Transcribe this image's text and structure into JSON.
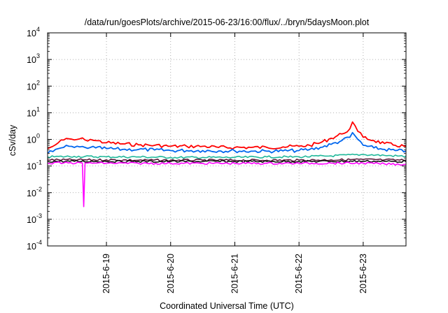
{
  "chart_data": {
    "type": "line",
    "title": "/data/run/goesPlots/archive/2015-06-23/16:00/flux/../bryn/5daysMoon.plot",
    "xlabel": "Coordinated Universal Time (UTC)",
    "ylabel": "cSv/day",
    "yscale": "log",
    "ylim": [
      0.0001,
      10000
    ],
    "xlim": [
      "2015-06-18 02:00",
      "2015-06-23 16:00"
    ],
    "y_ticks": [
      {
        "base": "10",
        "exp": "-4",
        "value": 0.0001
      },
      {
        "base": "10",
        "exp": "-3",
        "value": 0.001
      },
      {
        "base": "10",
        "exp": "-2",
        "value": 0.01
      },
      {
        "base": "10",
        "exp": "-1",
        "value": 0.1
      },
      {
        "base": "10",
        "exp": "0",
        "value": 1
      },
      {
        "base": "10",
        "exp": "1",
        "value": 10
      },
      {
        "base": "10",
        "exp": "2",
        "value": 100
      },
      {
        "base": "10",
        "exp": "3",
        "value": 1000
      },
      {
        "base": "10",
        "exp": "4",
        "value": 10000
      }
    ],
    "x_ticks": [
      "2015-6-19",
      "2015-6-20",
      "2015-6-21",
      "2015-6-22",
      "2015-6-23"
    ],
    "grid": true,
    "series": [
      {
        "color": "#ff0000",
        "x": [
          "2015-06-18 02:00",
          "2015-06-18 04:00",
          "2015-06-18 06:00",
          "2015-06-18 08:00",
          "2015-06-18 10:00",
          "2015-06-18 12:00",
          "2015-06-18 14:00",
          "2015-06-18 16:00",
          "2015-06-18 18:00",
          "2015-06-18 20:00",
          "2015-06-19 00:00",
          "2015-06-19 06:00",
          "2015-06-19 12:00",
          "2015-06-19 18:00",
          "2015-06-20 00:00",
          "2015-06-20 06:00",
          "2015-06-20 12:00",
          "2015-06-20 18:00",
          "2015-06-21 00:00",
          "2015-06-21 06:00",
          "2015-06-21 12:00",
          "2015-06-21 18:00",
          "2015-06-22 00:00",
          "2015-06-22 04:00",
          "2015-06-22 08:00",
          "2015-06-22 12:00",
          "2015-06-22 16:00",
          "2015-06-22 19:00",
          "2015-06-22 20:00",
          "2015-06-22 22:00",
          "2015-06-23 00:00",
          "2015-06-23 04:00",
          "2015-06-23 08:00",
          "2015-06-23 12:00",
          "2015-06-23 16:00"
        ],
        "y": [
          0.45,
          0.55,
          0.75,
          0.95,
          1.05,
          0.95,
          1.05,
          0.95,
          1.0,
          0.9,
          0.75,
          0.68,
          0.62,
          0.6,
          0.55,
          0.55,
          0.55,
          0.5,
          0.5,
          0.5,
          0.5,
          0.52,
          0.55,
          0.6,
          0.75,
          1.1,
          1.6,
          2.5,
          4.5,
          2.0,
          1.2,
          0.9,
          0.7,
          0.6,
          0.55
        ]
      },
      {
        "color": "#0066ee",
        "x": [
          "2015-06-18 02:00",
          "2015-06-18 04:00",
          "2015-06-18 06:00",
          "2015-06-18 08:00",
          "2015-06-18 10:00",
          "2015-06-18 12:00",
          "2015-06-18 14:00",
          "2015-06-18 16:00",
          "2015-06-18 18:00",
          "2015-06-18 20:00",
          "2015-06-19 00:00",
          "2015-06-19 06:00",
          "2015-06-19 12:00",
          "2015-06-19 18:00",
          "2015-06-20 00:00",
          "2015-06-20 06:00",
          "2015-06-20 12:00",
          "2015-06-20 18:00",
          "2015-06-21 00:00",
          "2015-06-21 06:00",
          "2015-06-21 12:00",
          "2015-06-21 18:00",
          "2015-06-22 00:00",
          "2015-06-22 04:00",
          "2015-06-22 08:00",
          "2015-06-22 12:00",
          "2015-06-22 16:00",
          "2015-06-22 19:00",
          "2015-06-22 20:00",
          "2015-06-22 22:00",
          "2015-06-23 00:00",
          "2015-06-23 04:00",
          "2015-06-23 08:00",
          "2015-06-23 12:00",
          "2015-06-23 16:00"
        ],
        "y": [
          0.3,
          0.35,
          0.45,
          0.5,
          0.55,
          0.5,
          0.52,
          0.5,
          0.5,
          0.48,
          0.45,
          0.42,
          0.42,
          0.4,
          0.38,
          0.38,
          0.38,
          0.37,
          0.37,
          0.36,
          0.36,
          0.37,
          0.38,
          0.42,
          0.5,
          0.65,
          0.9,
          1.2,
          1.8,
          1.0,
          0.6,
          0.48,
          0.42,
          0.38,
          0.36
        ]
      },
      {
        "color": "#20b89a",
        "x": [
          "2015-06-18 02:00",
          "2015-06-18 12:00",
          "2015-06-19 00:00",
          "2015-06-19 12:00",
          "2015-06-20 00:00",
          "2015-06-20 12:00",
          "2015-06-21 00:00",
          "2015-06-21 12:00",
          "2015-06-22 00:00",
          "2015-06-22 12:00",
          "2015-06-23 00:00",
          "2015-06-23 08:00",
          "2015-06-23 16:00"
        ],
        "y": [
          0.22,
          0.23,
          0.22,
          0.22,
          0.21,
          0.21,
          0.21,
          0.22,
          0.22,
          0.24,
          0.27,
          0.25,
          0.23
        ]
      },
      {
        "color": "#5a1a3a",
        "x": [
          "2015-06-18 02:00",
          "2015-06-18 12:00",
          "2015-06-19 00:00",
          "2015-06-19 12:00",
          "2015-06-20 00:00",
          "2015-06-20 12:00",
          "2015-06-21 00:00",
          "2015-06-21 12:00",
          "2015-06-22 00:00",
          "2015-06-22 12:00",
          "2015-06-23 00:00",
          "2015-06-23 08:00",
          "2015-06-23 16:00"
        ],
        "y": [
          0.17,
          0.17,
          0.17,
          0.165,
          0.165,
          0.165,
          0.165,
          0.165,
          0.165,
          0.17,
          0.175,
          0.17,
          0.165
        ]
      },
      {
        "color": "#111111",
        "x": [
          "2015-06-18 02:00",
          "2015-06-18 12:00",
          "2015-06-19 00:00",
          "2015-06-19 12:00",
          "2015-06-20 00:00",
          "2015-06-20 12:00",
          "2015-06-21 00:00",
          "2015-06-21 12:00",
          "2015-06-22 00:00",
          "2015-06-22 12:00",
          "2015-06-23 00:00",
          "2015-06-23 08:00",
          "2015-06-23 16:00"
        ],
        "y": [
          0.15,
          0.15,
          0.15,
          0.148,
          0.148,
          0.148,
          0.148,
          0.148,
          0.148,
          0.15,
          0.152,
          0.15,
          0.148
        ]
      },
      {
        "color": "#ff00ff",
        "x": [
          "2015-06-18 02:00",
          "2015-06-18 08:00",
          "2015-06-18 15:00",
          "2015-06-18 15:30",
          "2015-06-18 16:00",
          "2015-06-18 17:00",
          "2015-06-19 00:00",
          "2015-06-19 12:00",
          "2015-06-20 00:00",
          "2015-06-20 12:00",
          "2015-06-21 00:00",
          "2015-06-21 12:00",
          "2015-06-22 00:00",
          "2015-06-22 12:00",
          "2015-06-23 00:00",
          "2015-06-23 08:00",
          "2015-06-23 16:00"
        ],
        "y": [
          0.13,
          0.13,
          0.13,
          0.003,
          0.13,
          0.13,
          0.128,
          0.126,
          0.126,
          0.126,
          0.126,
          0.126,
          0.126,
          0.128,
          0.128,
          0.12,
          0.115
        ]
      }
    ]
  }
}
